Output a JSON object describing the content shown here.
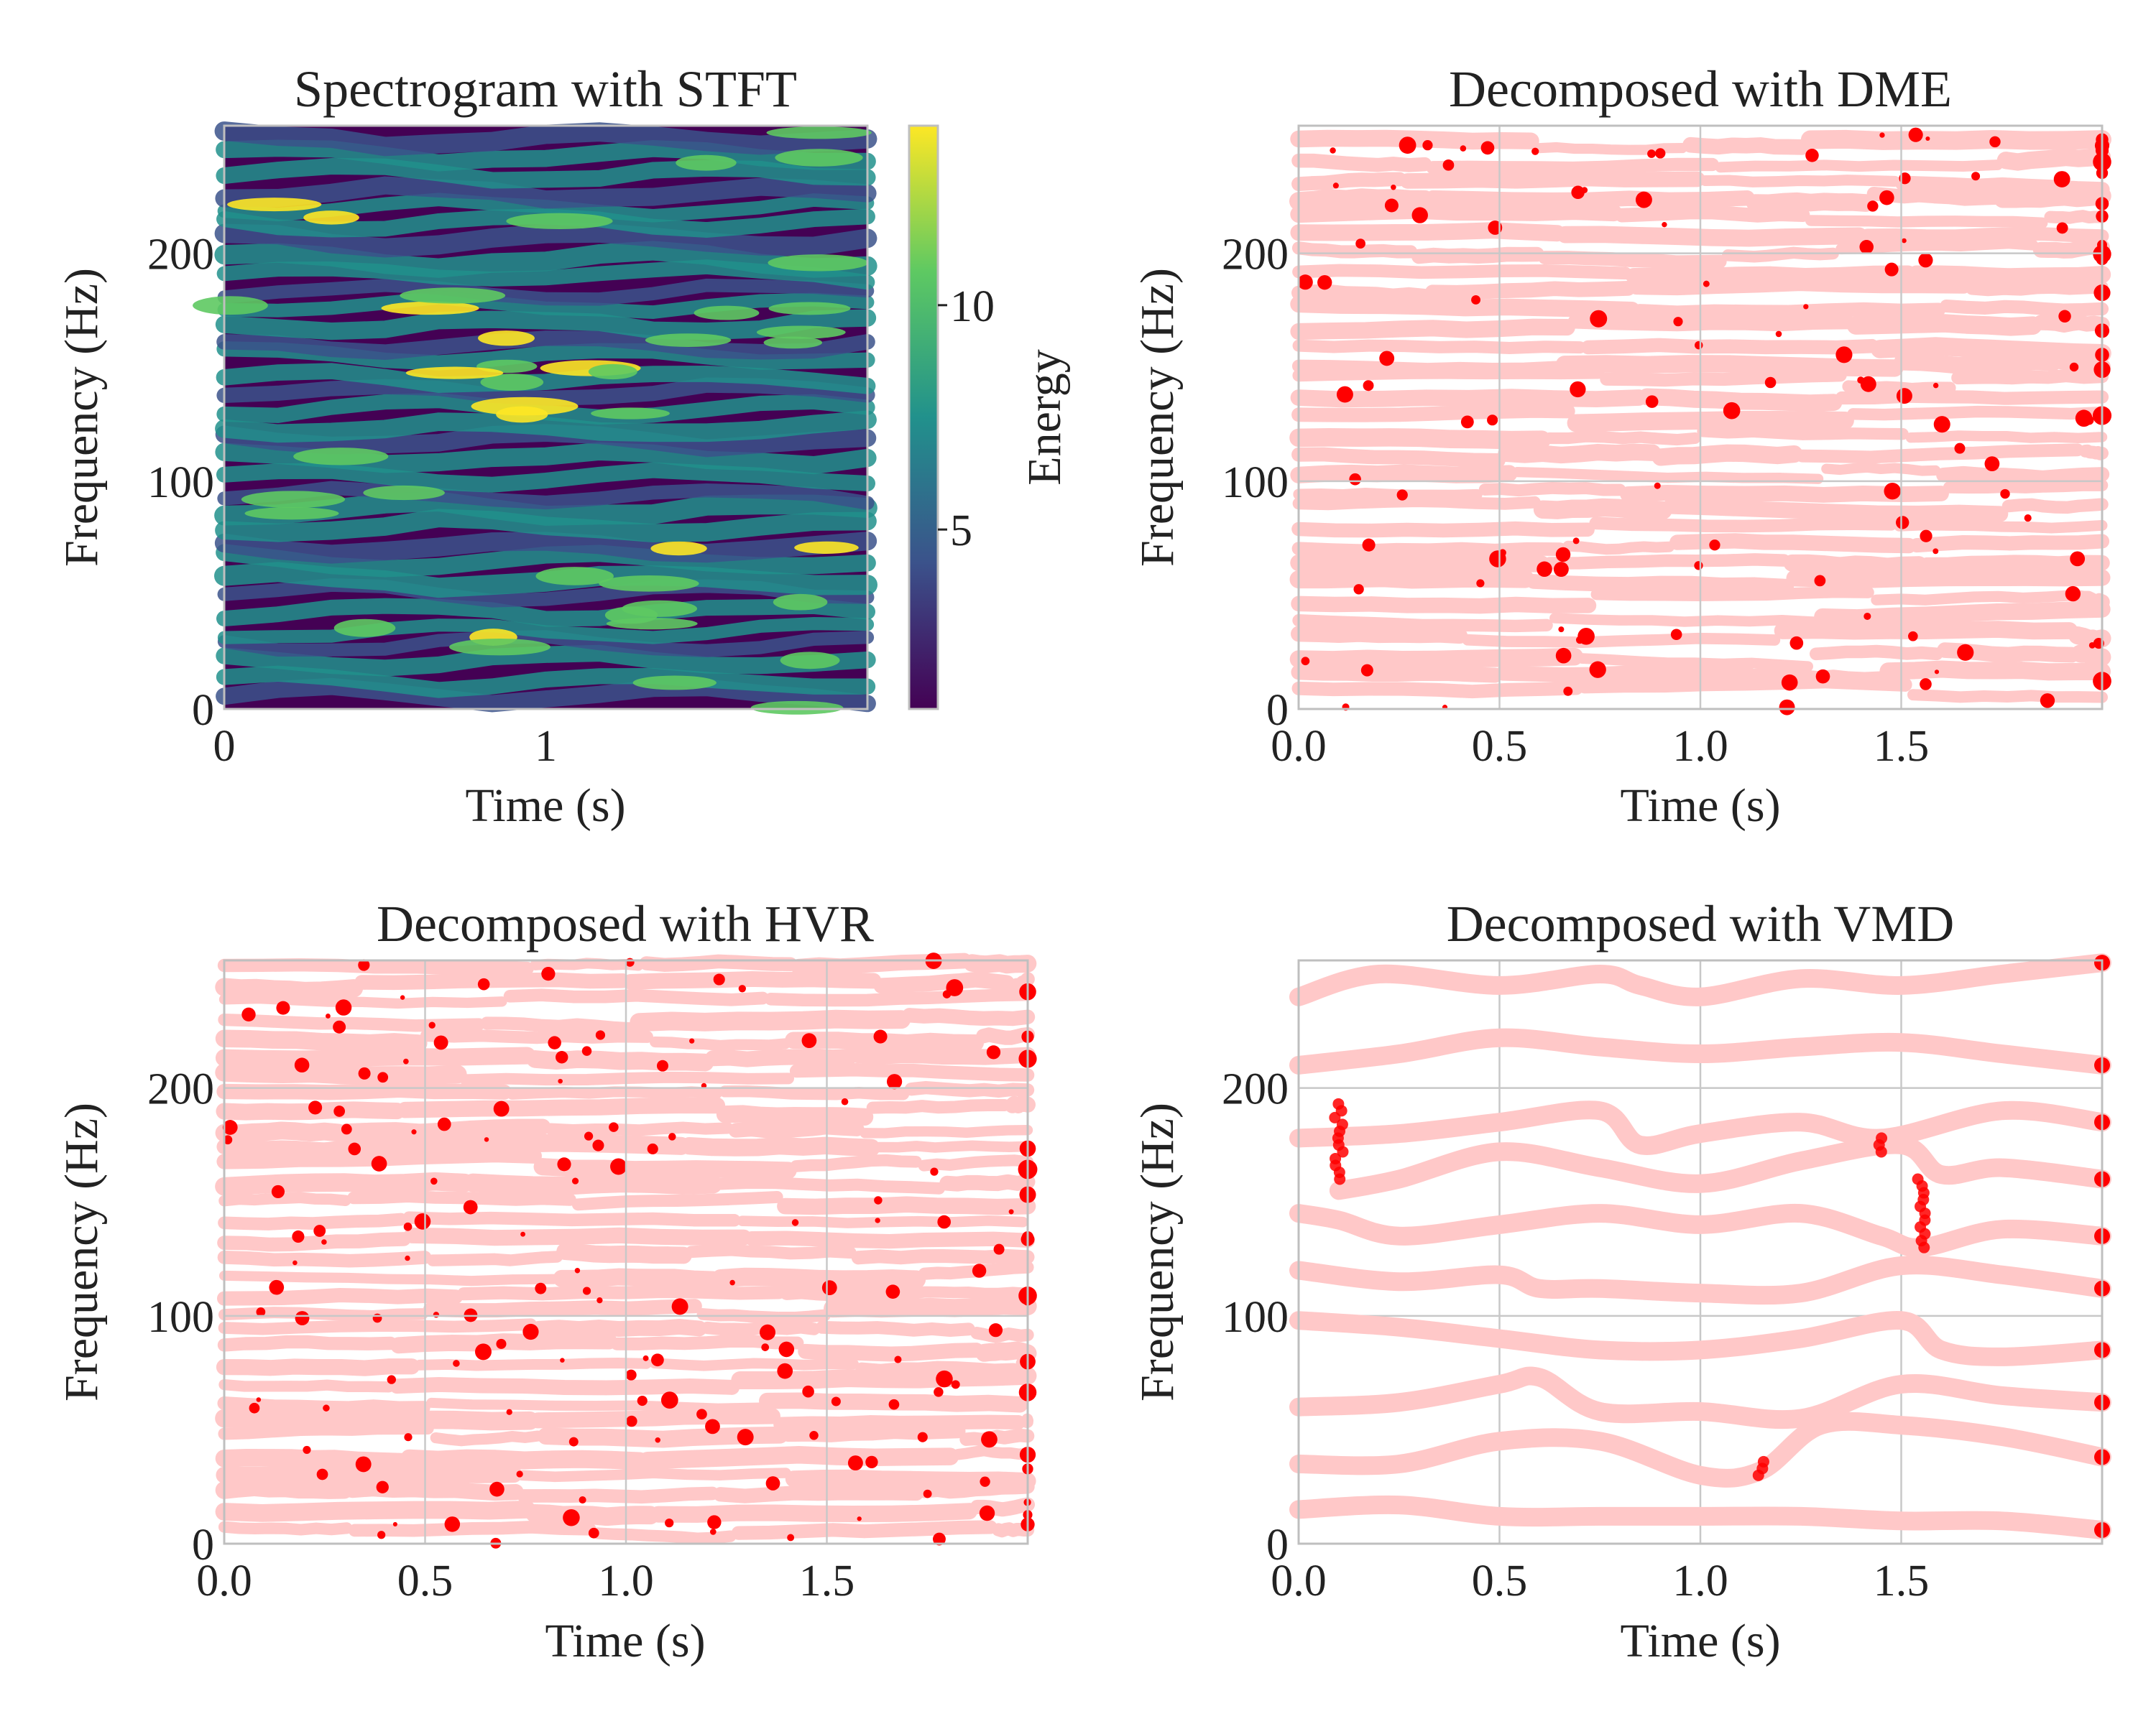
{
  "chart_data": [
    {
      "type": "heatmap",
      "title": "Spectrogram with STFT",
      "xlabel": "Time (s)",
      "ylabel": "Frequency (Hz)",
      "xlim": [
        0,
        2
      ],
      "ylim": [
        0,
        256
      ],
      "xticks": [
        "0",
        "1"
      ],
      "yticks": [
        "0",
        "100",
        "200"
      ],
      "grid": false,
      "colormap": "viridis",
      "colorbar": {
        "label": "Energy",
        "range": [
          1,
          14
        ],
        "ticks": [
          "5",
          "10"
        ]
      },
      "colors": [
        "#440154",
        "#3b528b",
        "#21918c",
        "#5ec962",
        "#fde725"
      ]
    },
    {
      "type": "scatter",
      "title": "Decomposed with DME",
      "xlabel": "Time (s)",
      "ylabel": "Frequency (Hz)",
      "xlim": [
        0,
        2
      ],
      "ylim": [
        0,
        256
      ],
      "xticks": [
        "0.0",
        "0.5",
        "1.0",
        "1.5"
      ],
      "yticks": [
        "0",
        "100",
        "200"
      ],
      "grid": true,
      "colors": {
        "trace": "#ffc8c8",
        "point": "#ff0000"
      },
      "series": [
        {
          "freqs": [
            8,
            16,
            24,
            32,
            40,
            48,
            56,
            64,
            72,
            80,
            88,
            96,
            104,
            112,
            120,
            128,
            136,
            144,
            152,
            160,
            168,
            176,
            184,
            192,
            200,
            208,
            216,
            224,
            232,
            240,
            248
          ]
        }
      ]
    },
    {
      "type": "scatter",
      "title": "Decomposed with HVR",
      "xlabel": "Time (s)",
      "ylabel": "Frequency (Hz)",
      "xlim": [
        0,
        2
      ],
      "ylim": [
        0,
        256
      ],
      "xticks": [
        "0.0",
        "0.5",
        "1.0",
        "1.5"
      ],
      "yticks": [
        "0",
        "100",
        "200"
      ],
      "grid": true,
      "colors": {
        "trace": "#ffc8c8",
        "point": "#ff0000"
      },
      "series": [
        {
          "freqs": [
            6,
            14,
            22,
            30,
            38,
            46,
            54,
            62,
            70,
            78,
            86,
            94,
            102,
            110,
            118,
            126,
            134,
            142,
            150,
            158,
            166,
            174,
            182,
            190,
            198,
            206,
            214,
            222,
            230,
            238,
            246,
            254
          ]
        }
      ]
    },
    {
      "type": "scatter",
      "title": "Decomposed with VMD",
      "xlabel": "Time (s)",
      "ylabel": "Frequency (Hz)",
      "xlim": [
        0,
        2
      ],
      "ylim": [
        0,
        256
      ],
      "xticks": [
        "0.0",
        "0.5",
        "1.0",
        "1.5"
      ],
      "yticks": [
        "0",
        "100",
        "200"
      ],
      "grid": true,
      "colors": {
        "trace": "#ffc8c8",
        "point": "#ff0000"
      },
      "series": [
        {
          "x": [
            0,
            0.25,
            0.5,
            0.75,
            1.0,
            1.25,
            1.5,
            1.75,
            2.0
          ],
          "y": [
            15,
            17,
            12,
            12,
            12,
            12,
            10,
            10,
            6
          ]
        },
        {
          "x": [
            0,
            0.25,
            0.5,
            0.75,
            1.0,
            1.15,
            1.3,
            1.5,
            1.75,
            2.0
          ],
          "y": [
            35,
            35,
            45,
            45,
            30,
            32,
            52,
            52,
            47,
            38
          ]
        },
        {
          "x": [
            0,
            0.25,
            0.5,
            0.6,
            0.75,
            1.0,
            1.25,
            1.5,
            1.75,
            2.0
          ],
          "y": [
            60,
            62,
            70,
            73,
            58,
            58,
            55,
            70,
            65,
            62
          ]
        },
        {
          "x": [
            0,
            0.25,
            0.5,
            0.75,
            1.0,
            1.25,
            1.5,
            1.6,
            1.75,
            2.0
          ],
          "y": [
            98,
            95,
            90,
            85,
            85,
            90,
            98,
            85,
            82,
            85
          ]
        },
        {
          "x": [
            0,
            0.25,
            0.5,
            0.6,
            0.75,
            1.0,
            1.25,
            1.5,
            1.75,
            2.0
          ],
          "y": [
            120,
            115,
            118,
            112,
            112,
            110,
            110,
            122,
            118,
            112
          ]
        },
        {
          "x": [
            0,
            0.1,
            0.25,
            0.5,
            0.75,
            1.0,
            1.25,
            1.45,
            1.55,
            1.75,
            2.0
          ],
          "y": [
            145,
            142,
            135,
            140,
            145,
            140,
            145,
            135,
            130,
            138,
            135
          ]
        },
        {
          "x": [
            0.1,
            0.25,
            0.5,
            0.75,
            1.0,
            1.25,
            1.5,
            1.6,
            1.75,
            2.0
          ],
          "y": [
            155,
            160,
            172,
            165,
            158,
            168,
            175,
            162,
            165,
            160
          ]
        },
        {
          "x": [
            0,
            0.25,
            0.5,
            0.75,
            0.85,
            1.0,
            1.25,
            1.45,
            1.75,
            2.0
          ],
          "y": [
            178,
            180,
            185,
            190,
            175,
            180,
            185,
            178,
            190,
            185
          ]
        },
        {
          "x": [
            0,
            0.25,
            0.5,
            0.75,
            1.0,
            1.25,
            1.5,
            1.75,
            2.0
          ],
          "y": [
            210,
            215,
            222,
            218,
            215,
            218,
            220,
            215,
            210
          ]
        },
        {
          "x": [
            0,
            0.2,
            0.5,
            0.75,
            0.85,
            1.0,
            1.25,
            1.5,
            1.75,
            2.0
          ],
          "y": [
            240,
            250,
            245,
            250,
            245,
            240,
            248,
            245,
            250,
            255
          ]
        }
      ]
    }
  ]
}
